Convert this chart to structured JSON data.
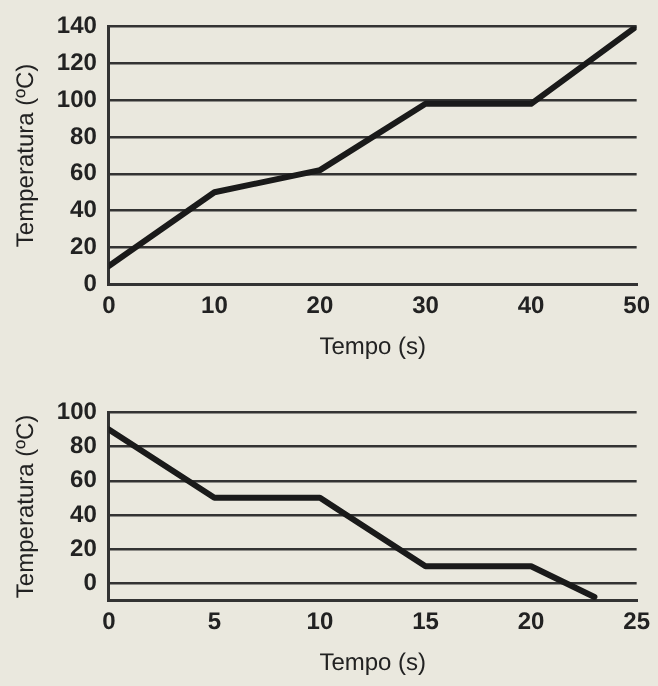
{
  "chart_data": [
    {
      "type": "line",
      "xlabel": "Tempo (s)",
      "ylabel": "Temperatura (ºC)",
      "x": [
        0,
        10,
        20,
        30,
        40,
        50
      ],
      "series": [
        {
          "color": "#1a1a1a",
          "values": [
            10,
            50,
            62,
            98,
            98,
            140
          ]
        }
      ],
      "xlim": [
        0,
        50
      ],
      "xticks": [
        0,
        10,
        20,
        30,
        40,
        50
      ],
      "ylim": [
        0,
        140
      ],
      "yticks": [
        0,
        20,
        40,
        60,
        80,
        100,
        120,
        140
      ],
      "grid": "y",
      "legend": false,
      "marker": "none",
      "line_style": "solid"
    },
    {
      "type": "line",
      "xlabel": "Tempo (s)",
      "ylabel": "Temperatura (ºC)",
      "x": [
        0,
        5,
        10,
        15,
        20,
        23
      ],
      "series": [
        {
          "color": "#1a1a1a",
          "values": [
            90,
            50,
            50,
            10,
            10,
            -8
          ]
        }
      ],
      "xlim": [
        0,
        25
      ],
      "xticks": [
        0,
        5,
        10,
        15,
        20,
        25
      ],
      "ylim": [
        -10,
        100
      ],
      "yticks": [
        0,
        20,
        40,
        60,
        80,
        100
      ],
      "grid": "y",
      "legend": false,
      "marker": "none",
      "line_style": "solid"
    }
  ]
}
